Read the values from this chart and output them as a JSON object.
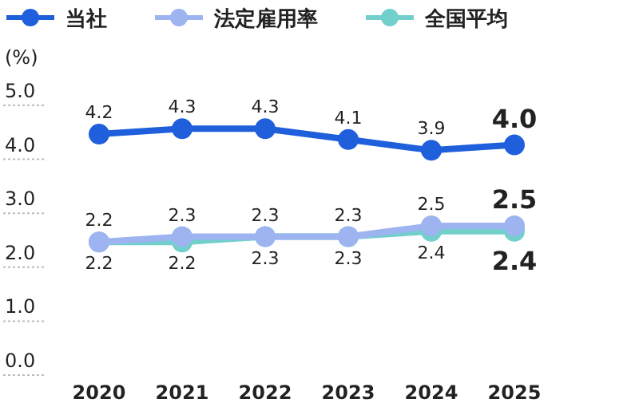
{
  "chart_data": {
    "type": "line",
    "ylabel": "(%)",
    "categories": [
      "2020",
      "2021",
      "2022",
      "2023",
      "2024",
      "2025"
    ],
    "series": [
      {
        "name": "当社",
        "color": "#1f5fdc",
        "values": [
          4.2,
          4.3,
          4.3,
          4.1,
          3.9,
          4.0
        ],
        "value_labels": [
          "4.2",
          "4.3",
          "4.3",
          "4.1",
          "3.9",
          "4.0"
        ]
      },
      {
        "name": "法定雇用率",
        "color": "#9db4f0",
        "values": [
          2.2,
          2.3,
          2.3,
          2.3,
          2.5,
          2.5
        ],
        "value_labels": [
          "2.2",
          "2.3",
          "2.3",
          "2.3",
          "2.5",
          "2.5"
        ]
      },
      {
        "name": "全国平均",
        "color": "#72cfcc",
        "values": [
          2.2,
          2.2,
          2.3,
          2.3,
          2.4,
          2.4
        ],
        "value_labels": [
          "2.2",
          "2.2",
          "2.3",
          "2.3",
          "2.4",
          "2.4"
        ]
      }
    ],
    "ylim": [
      0,
      5
    ],
    "yticks": [
      {
        "value": 0,
        "label": "0.0"
      },
      {
        "value": 1,
        "label": "1.0"
      },
      {
        "value": 2,
        "label": "2.0"
      },
      {
        "value": 3,
        "label": "3.0"
      },
      {
        "value": 4,
        "label": "4.0"
      },
      {
        "value": 5,
        "label": "5.0"
      }
    ],
    "legend": "top",
    "marker": "circle",
    "line_style": "solid"
  }
}
